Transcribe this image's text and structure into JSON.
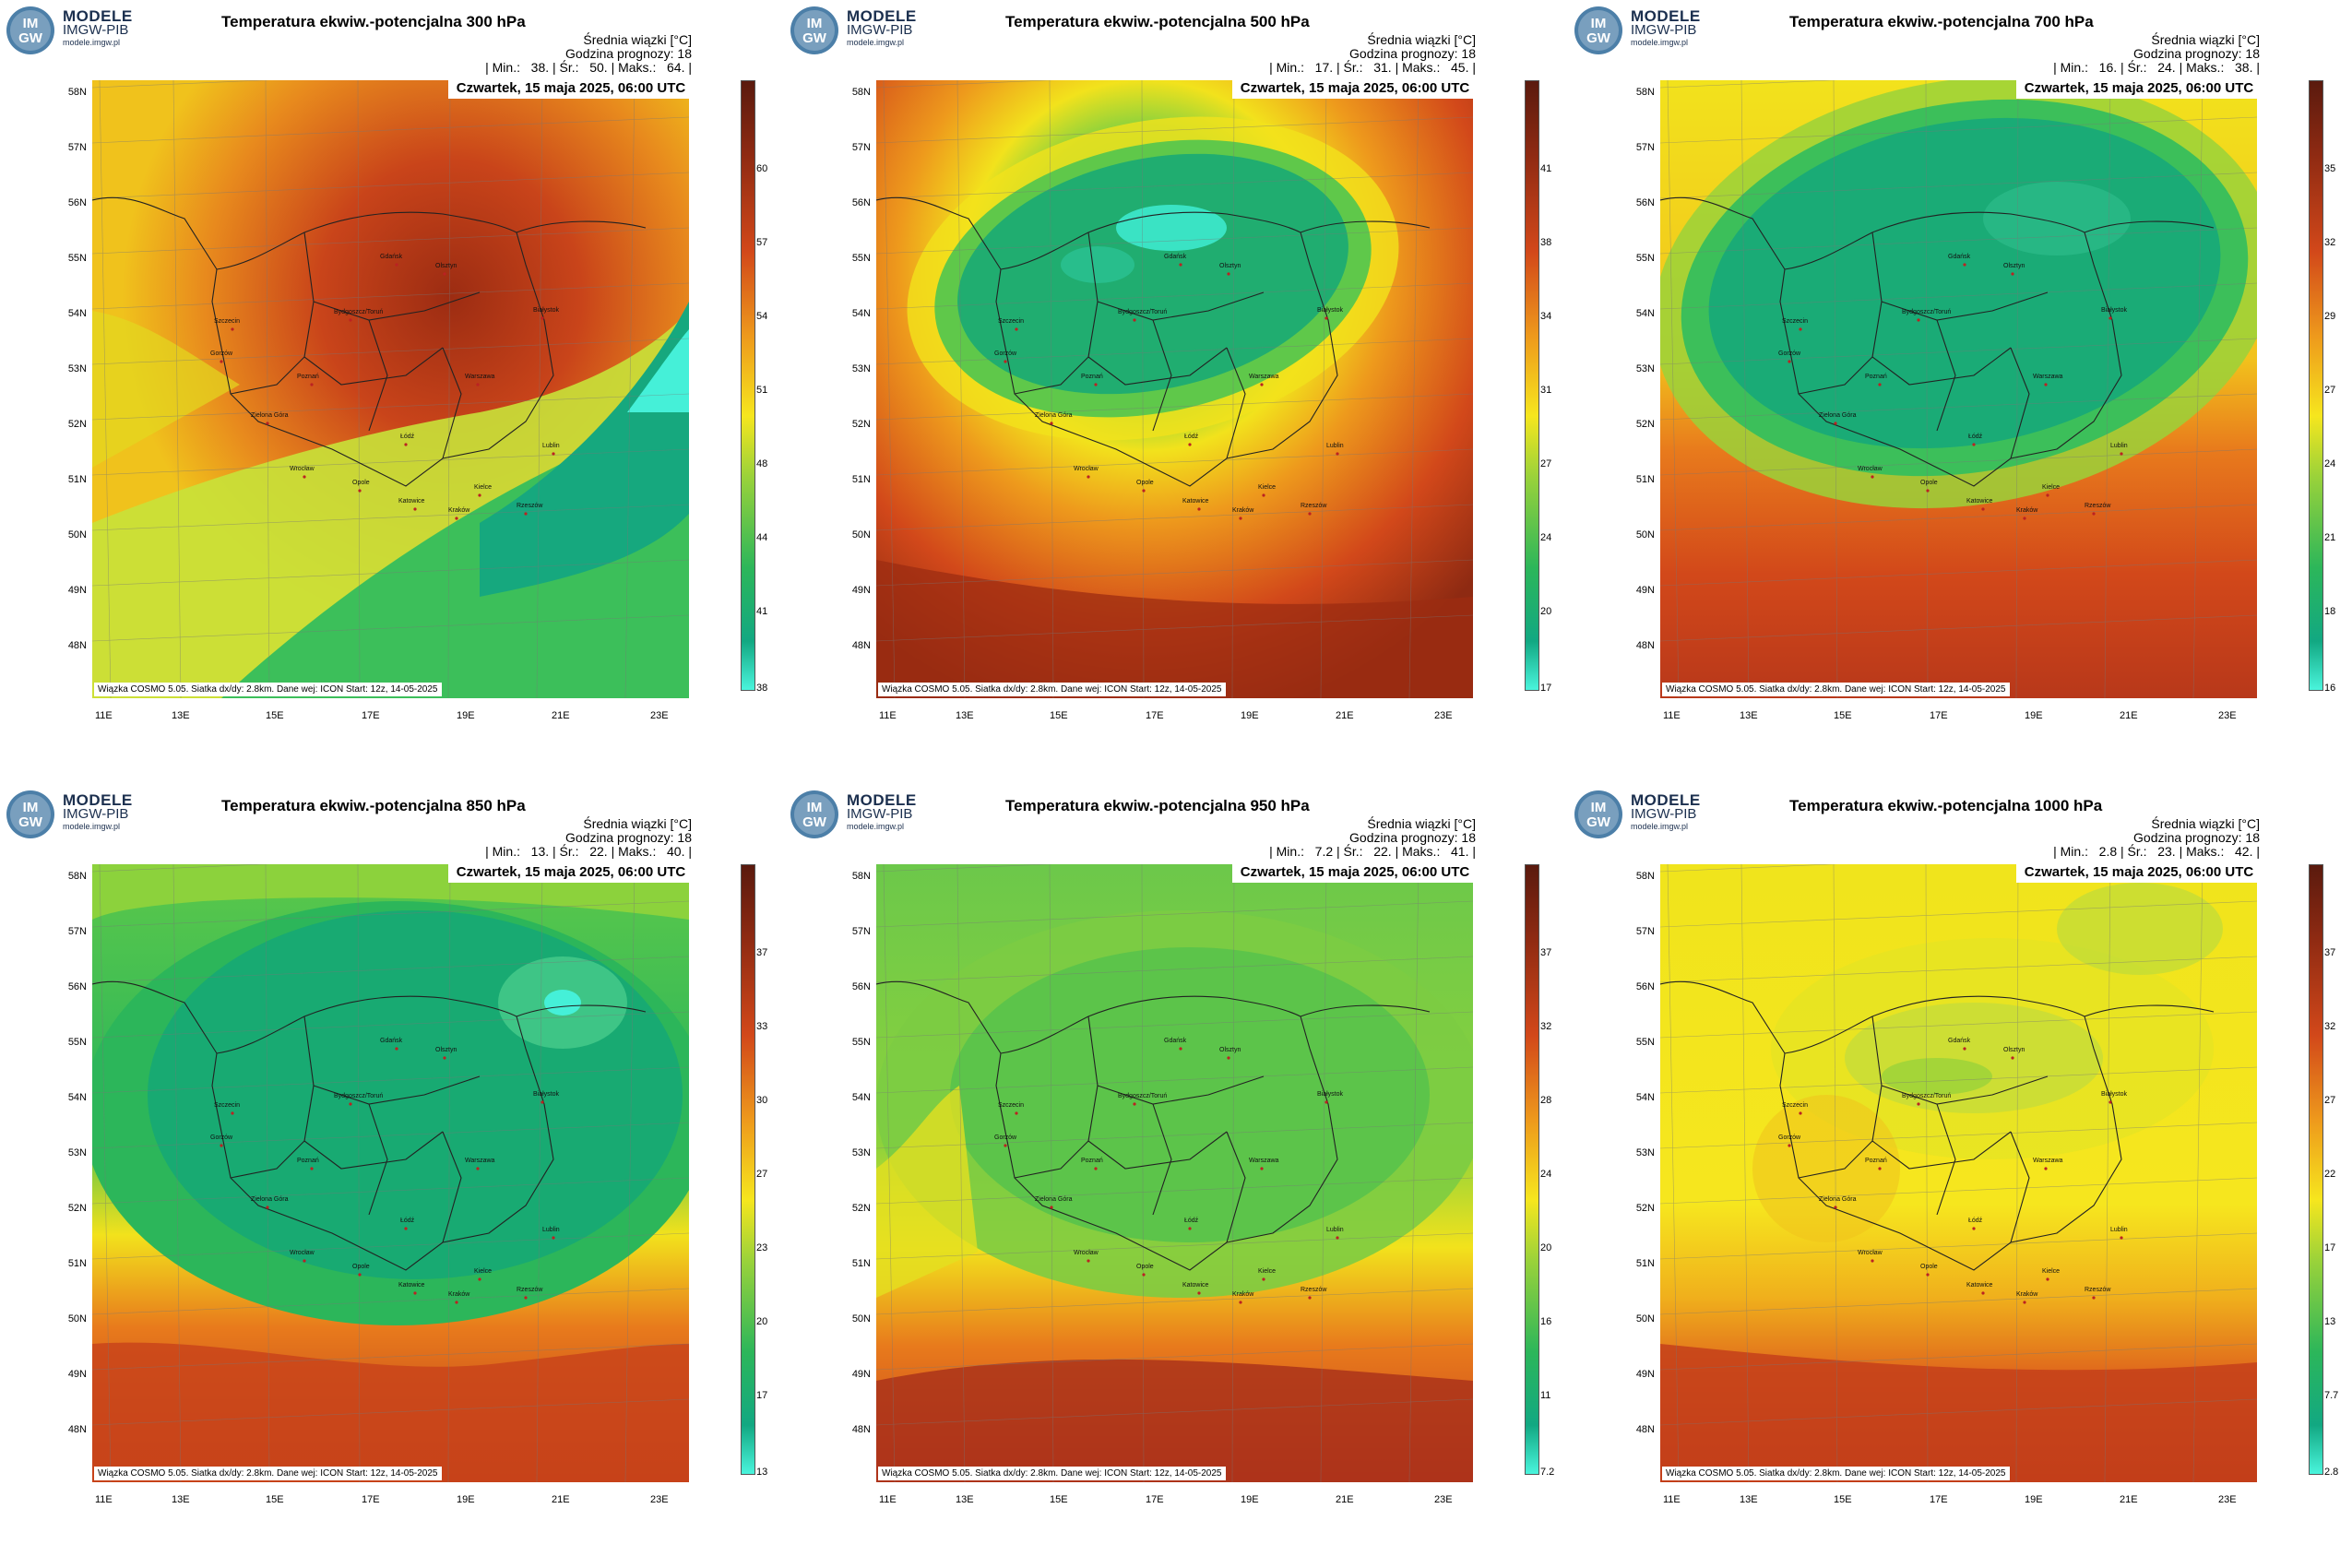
{
  "logo": {
    "line1": "MODELE",
    "line2": "IMGW-PIB",
    "line3": "modele.imgw.pl",
    "badge_top": "IM",
    "badge_bottom": "GW"
  },
  "info_line1": "Średnia wiązki [°C]",
  "info_line2": "Godzina prognozy: 18",
  "date": "Czwartek, 15 maja 2025, 06:00 UTC",
  "footer": "Wiązka COSMO 5.05. Siatka dx/dy: 2.8km. Dane wej: ICON Start: 12z, 14-05-2025",
  "lat_labels": [
    "58N",
    "57N",
    "56N",
    "55N",
    "54N",
    "53N",
    "52N",
    "51N",
    "50N",
    "49N",
    "48N"
  ],
  "lon_labels": [
    "11E",
    "13E",
    "15E",
    "17E",
    "19E",
    "21E",
    "23E"
  ],
  "cities": [
    "Gdańsk",
    "Olsztyn",
    "Szczecin",
    "Bydgoszcz/Toruń",
    "Białystok",
    "Gorzów",
    "Poznań",
    "Warszawa",
    "Zielona Góra",
    "Łódź",
    "Lublin",
    "Wrocław",
    "Opole",
    "Kielce",
    "Rzeszów",
    "Katowice",
    "Kraków"
  ],
  "colors": {
    "red": "#c43a1a",
    "orange": "#e07a1c",
    "yellow": "#f2e21c",
    "green": "#3cb84a",
    "teal": "#10b08a",
    "cyan": "#45f0d8",
    "darkred": "#7a1d0f"
  },
  "panels": [
    {
      "title": "Temperatura ekwiw.-potencjalna 300 hPa",
      "min": "38.",
      "avg": "50.",
      "max": "64.",
      "colorbar": [
        "60",
        "57",
        "54",
        "51",
        "48",
        "44",
        "41",
        "38"
      ]
    },
    {
      "title": "Temperatura ekwiw.-potencjalna 500 hPa",
      "min": "17.",
      "avg": "31.",
      "max": "45.",
      "colorbar": [
        "41",
        "38",
        "34",
        "31",
        "27",
        "24",
        "20",
        "17"
      ]
    },
    {
      "title": "Temperatura ekwiw.-potencjalna 700 hPa",
      "min": "16.",
      "avg": "24.",
      "max": "38.",
      "colorbar": [
        "35",
        "32",
        "29",
        "27",
        "24",
        "21",
        "18",
        "16"
      ]
    },
    {
      "title": "Temperatura ekwiw.-potencjalna 850 hPa",
      "min": "13.",
      "avg": "22.",
      "max": "40.",
      "colorbar": [
        "37",
        "33",
        "30",
        "27",
        "23",
        "20",
        "17",
        "13"
      ]
    },
    {
      "title": "Temperatura ekwiw.-potencjalna 950 hPa",
      "min": "7.2",
      "avg": "22.",
      "max": "41.",
      "colorbar": [
        "37",
        "32",
        "28",
        "24",
        "20",
        "16",
        "11",
        "7.2"
      ]
    },
    {
      "title": "Temperatura ekwiw.-potencjalna 1000 hPa",
      "min": "2.8",
      "avg": "23.",
      "max": "42.",
      "colorbar": [
        "37",
        "32",
        "27",
        "22",
        "17",
        "13",
        "7.7",
        "2.8"
      ]
    }
  ]
}
